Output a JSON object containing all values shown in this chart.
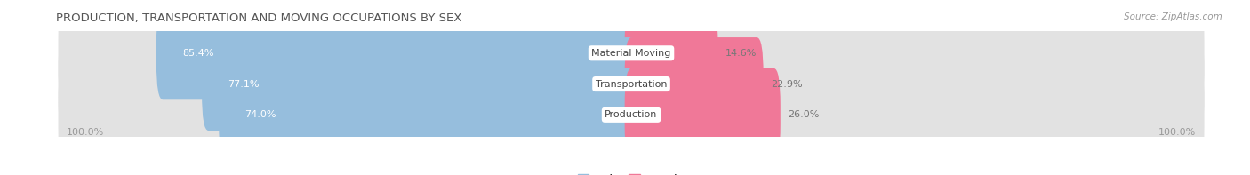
{
  "title": "PRODUCTION, TRANSPORTATION AND MOVING OCCUPATIONS BY SEX",
  "source": "Source: ZipAtlas.com",
  "categories": [
    "Material Moving",
    "Transportation",
    "Production"
  ],
  "male_values": [
    85.4,
    77.1,
    74.0
  ],
  "female_values": [
    14.6,
    22.9,
    26.0
  ],
  "male_color": "#96bedd",
  "female_color": "#f07898",
  "row_bg_color": "#e2e2e2",
  "label_color_inside": "#ffffff",
  "label_color_outside": "#777777",
  "category_label_color": "#444444",
  "axis_label_color": "#999999",
  "title_color": "#555555",
  "title_fontsize": 9.5,
  "bar_label_fontsize": 8,
  "category_fontsize": 8,
  "axis_fontsize": 8,
  "legend_fontsize": 9,
  "x_left_label": "100.0%",
  "x_right_label": "100.0%",
  "figsize": [
    14.06,
    1.97
  ],
  "dpi": 100
}
